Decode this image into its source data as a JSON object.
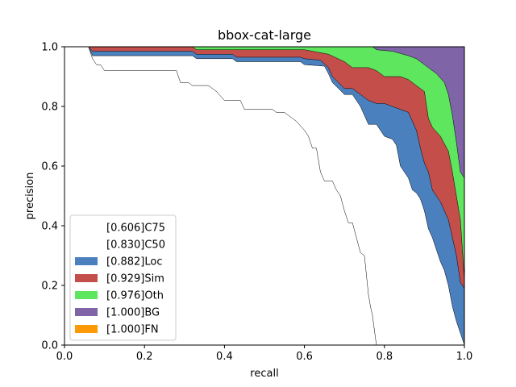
{
  "chart_data": {
    "type": "area",
    "title": "bbox-cat-large",
    "xlabel": "recall",
    "ylabel": "precision",
    "xlim": [
      0,
      1
    ],
    "ylim": [
      0,
      1
    ],
    "x_ticks": [
      "0.0",
      "0.2",
      "0.4",
      "0.6",
      "0.8",
      "1.0"
    ],
    "y_ticks": [
      "0.0",
      "0.2",
      "0.4",
      "0.6",
      "0.8",
      "1.0"
    ],
    "grid": false,
    "legend_position": "lower-left",
    "series": [
      {
        "name": "[1.000]FN",
        "color": "#fb9a06",
        "points": [
          [
            0,
            1
          ],
          [
            1,
            1
          ]
        ]
      },
      {
        "name": "[1.000]BG",
        "color": "#7f64a8",
        "points": [
          [
            0,
            1
          ],
          [
            0.78,
            1
          ],
          [
            0.99,
            1
          ],
          [
            1,
            1
          ]
        ]
      },
      {
        "name": "[0.976]Oth",
        "color": "#5fe65f",
        "points": [
          [
            0,
            1
          ],
          [
            0.06,
            1
          ],
          [
            0.77,
            1
          ],
          [
            0.78,
            0.99
          ],
          [
            0.82,
            0.985
          ],
          [
            0.86,
            0.97
          ],
          [
            0.88,
            0.96
          ],
          [
            0.9,
            0.94
          ],
          [
            0.91,
            0.93
          ],
          [
            0.93,
            0.91
          ],
          [
            0.95,
            0.88
          ],
          [
            0.96,
            0.84
          ],
          [
            0.97,
            0.77
          ],
          [
            0.98,
            0.68
          ],
          [
            0.99,
            0.58
          ],
          [
            1,
            0.56
          ]
        ]
      },
      {
        "name": "[0.929]Sim",
        "color": "#c34e4a",
        "points": [
          [
            0,
            1
          ],
          [
            0.06,
            1
          ],
          [
            0.32,
            1
          ],
          [
            0.33,
            0.99
          ],
          [
            0.6,
            0.99
          ],
          [
            0.66,
            0.975
          ],
          [
            0.7,
            0.95
          ],
          [
            0.72,
            0.93
          ],
          [
            0.76,
            0.93
          ],
          [
            0.78,
            0.92
          ],
          [
            0.8,
            0.9
          ],
          [
            0.84,
            0.9
          ],
          [
            0.86,
            0.89
          ],
          [
            0.88,
            0.87
          ],
          [
            0.9,
            0.85
          ],
          [
            0.91,
            0.76
          ],
          [
            0.92,
            0.73
          ],
          [
            0.94,
            0.7
          ],
          [
            0.96,
            0.65
          ],
          [
            0.97,
            0.58
          ],
          [
            0.98,
            0.5
          ],
          [
            0.99,
            0.42
          ],
          [
            1,
            0.22
          ]
        ]
      },
      {
        "name": "[0.882]Loc",
        "color": "#4a80bd",
        "points": [
          [
            0,
            1
          ],
          [
            0.06,
            1
          ],
          [
            0.07,
            0.985
          ],
          [
            0.32,
            0.985
          ],
          [
            0.33,
            0.975
          ],
          [
            0.42,
            0.975
          ],
          [
            0.43,
            0.965
          ],
          [
            0.59,
            0.965
          ],
          [
            0.6,
            0.96
          ],
          [
            0.64,
            0.955
          ],
          [
            0.66,
            0.93
          ],
          [
            0.67,
            0.9
          ],
          [
            0.7,
            0.86
          ],
          [
            0.72,
            0.86
          ],
          [
            0.74,
            0.84
          ],
          [
            0.76,
            0.82
          ],
          [
            0.78,
            0.81
          ],
          [
            0.8,
            0.81
          ],
          [
            0.82,
            0.8
          ],
          [
            0.84,
            0.79
          ],
          [
            0.86,
            0.78
          ],
          [
            0.88,
            0.72
          ],
          [
            0.89,
            0.66
          ],
          [
            0.9,
            0.61
          ],
          [
            0.91,
            0.58
          ],
          [
            0.92,
            0.52
          ],
          [
            0.94,
            0.48
          ],
          [
            0.96,
            0.42
          ],
          [
            0.97,
            0.36
          ],
          [
            0.98,
            0.3
          ],
          [
            0.99,
            0.21
          ],
          [
            1,
            0.19
          ]
        ]
      },
      {
        "name": "[0.830]C50",
        "color": "#ffffff",
        "points": [
          [
            0,
            1
          ],
          [
            0.06,
            1
          ],
          [
            0.07,
            0.97
          ],
          [
            0.32,
            0.97
          ],
          [
            0.33,
            0.96
          ],
          [
            0.42,
            0.96
          ],
          [
            0.43,
            0.95
          ],
          [
            0.59,
            0.95
          ],
          [
            0.6,
            0.94
          ],
          [
            0.65,
            0.935
          ],
          [
            0.66,
            0.91
          ],
          [
            0.67,
            0.88
          ],
          [
            0.7,
            0.84
          ],
          [
            0.72,
            0.84
          ],
          [
            0.74,
            0.8
          ],
          [
            0.75,
            0.77
          ],
          [
            0.76,
            0.74
          ],
          [
            0.78,
            0.74
          ],
          [
            0.8,
            0.7
          ],
          [
            0.82,
            0.69
          ],
          [
            0.83,
            0.67
          ],
          [
            0.84,
            0.6
          ],
          [
            0.86,
            0.56
          ],
          [
            0.87,
            0.52
          ],
          [
            0.88,
            0.51
          ],
          [
            0.89,
            0.49
          ],
          [
            0.9,
            0.45
          ],
          [
            0.91,
            0.39
          ],
          [
            0.92,
            0.36
          ],
          [
            0.93,
            0.32
          ],
          [
            0.94,
            0.28
          ],
          [
            0.95,
            0.25
          ],
          [
            0.96,
            0.2
          ],
          [
            0.97,
            0.13
          ],
          [
            0.98,
            0.08
          ],
          [
            0.99,
            0.04
          ],
          [
            1,
            0.0
          ]
        ]
      },
      {
        "name": "[0.606]C75",
        "color": "#ffffff",
        "points": [
          [
            0,
            1
          ],
          [
            0.06,
            1
          ],
          [
            0.07,
            0.96
          ],
          [
            0.08,
            0.94
          ],
          [
            0.09,
            0.94
          ],
          [
            0.1,
            0.92
          ],
          [
            0.28,
            0.92
          ],
          [
            0.29,
            0.88
          ],
          [
            0.31,
            0.88
          ],
          [
            0.32,
            0.87
          ],
          [
            0.36,
            0.87
          ],
          [
            0.38,
            0.85
          ],
          [
            0.4,
            0.82
          ],
          [
            0.44,
            0.82
          ],
          [
            0.45,
            0.79
          ],
          [
            0.52,
            0.79
          ],
          [
            0.53,
            0.78
          ],
          [
            0.55,
            0.78
          ],
          [
            0.56,
            0.77
          ],
          [
            0.58,
            0.75
          ],
          [
            0.6,
            0.72
          ],
          [
            0.61,
            0.7
          ],
          [
            0.62,
            0.66
          ],
          [
            0.63,
            0.66
          ],
          [
            0.64,
            0.58
          ],
          [
            0.65,
            0.55
          ],
          [
            0.67,
            0.55
          ],
          [
            0.68,
            0.52
          ],
          [
            0.69,
            0.5
          ],
          [
            0.7,
            0.45
          ],
          [
            0.71,
            0.41
          ],
          [
            0.72,
            0.41
          ],
          [
            0.73,
            0.36
          ],
          [
            0.74,
            0.31
          ],
          [
            0.75,
            0.3
          ],
          [
            0.76,
            0.17
          ],
          [
            0.765,
            0.13
          ],
          [
            0.77,
            0.1
          ],
          [
            0.78,
            0.0
          ]
        ]
      }
    ],
    "legend": [
      {
        "label": "[0.606]C75",
        "color": "#ffffff"
      },
      {
        "label": "[0.830]C50",
        "color": "#ffffff"
      },
      {
        "label": "[0.882]Loc",
        "color": "#4a80bd"
      },
      {
        "label": "[0.929]Sim",
        "color": "#c34e4a"
      },
      {
        "label": "[0.976]Oth",
        "color": "#5fe65f"
      },
      {
        "label": "[1.000]BG",
        "color": "#7f64a8"
      },
      {
        "label": "[1.000]FN",
        "color": "#fb9a06"
      }
    ]
  }
}
